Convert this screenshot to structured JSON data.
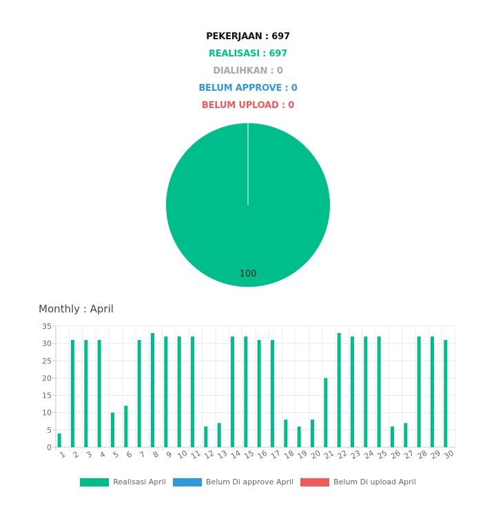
{
  "summary": {
    "pekerjaan": "PEKERJAAN : 697",
    "realisasi": "REALISASI : 697",
    "dialihkan": "DIALIHKAN : 0",
    "belum_approve": "BELUM APPROVE : 0",
    "belum_upload": "BELUM UPLOAD : 0"
  },
  "colors": {
    "pekerjaan": "#111111",
    "realisasi": "#00be8c",
    "dialihkan": "#a8a8a8",
    "belum_approve": "#3098d8",
    "belum_upload": "#f05a5a"
  },
  "monthly_title": "Monthly : April",
  "chart_data": [
    {
      "type": "pie",
      "slices": [
        {
          "value": 100,
          "label": "100",
          "color": "#00be8c"
        }
      ]
    },
    {
      "type": "bar",
      "title": "Monthly : April",
      "categories": [
        "1",
        "2",
        "3",
        "4",
        "5",
        "6",
        "7",
        "8",
        "9",
        "10",
        "11",
        "12",
        "13",
        "14",
        "15",
        "16",
        "17",
        "18",
        "19",
        "20",
        "21",
        "22",
        "23",
        "24",
        "25",
        "26",
        "27",
        "28",
        "29",
        "30"
      ],
      "series": [
        {
          "name": "Realisasi April",
          "color": "#00be8c",
          "values": [
            4,
            31,
            31,
            31,
            10,
            12,
            31,
            33,
            32,
            32,
            32,
            6,
            7,
            32,
            32,
            31,
            31,
            8,
            6,
            8,
            20,
            33,
            32,
            32,
            32,
            6,
            7,
            32,
            32,
            31
          ]
        },
        {
          "name": "Belum Di approve April",
          "color": "#3098d8",
          "values": [
            0,
            0,
            0,
            0,
            0,
            0,
            0,
            0,
            0,
            0,
            0,
            0,
            0,
            0,
            0,
            0,
            0,
            0,
            0,
            0,
            0,
            0,
            0,
            0,
            0,
            0,
            0,
            0,
            0,
            0
          ]
        },
        {
          "name": "Belum Di upload April",
          "color": "#f05a5a",
          "values": [
            0,
            0,
            0,
            0,
            0,
            0,
            0,
            0,
            0,
            0,
            0,
            0,
            0,
            0,
            0,
            0,
            0,
            0,
            0,
            0,
            0,
            0,
            0,
            0,
            0,
            0,
            0,
            0,
            0,
            0
          ]
        }
      ],
      "ylim": [
        0,
        35
      ],
      "yticks": [
        0,
        5,
        10,
        15,
        20,
        25,
        30,
        35
      ],
      "grid": true,
      "legend": "bottom"
    }
  ]
}
